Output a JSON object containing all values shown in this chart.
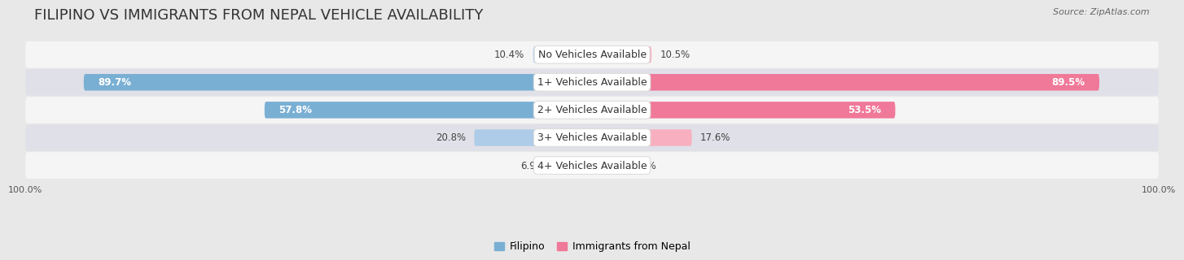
{
  "title": "FILIPINO VS IMMIGRANTS FROM NEPAL VEHICLE AVAILABILITY",
  "source": "Source: ZipAtlas.com",
  "categories": [
    "No Vehicles Available",
    "1+ Vehicles Available",
    "2+ Vehicles Available",
    "3+ Vehicles Available",
    "4+ Vehicles Available"
  ],
  "filipino_values": [
    10.4,
    89.7,
    57.8,
    20.8,
    6.9
  ],
  "nepal_values": [
    10.5,
    89.5,
    53.5,
    17.6,
    5.6
  ],
  "filipino_color": "#7aafd4",
  "nepal_color": "#f07898",
  "filipino_color_light": "#aecce8",
  "nepal_color_light": "#f8b0c0",
  "filipino_label": "Filipino",
  "nepal_label": "Immigrants from Nepal",
  "background_color": "#e8e8e8",
  "row_colors": [
    "#f5f5f5",
    "#e0e0e8"
  ],
  "max_value": 100.0,
  "title_fontsize": 13,
  "label_fontsize": 8.5,
  "tick_fontsize": 8,
  "source_fontsize": 8
}
